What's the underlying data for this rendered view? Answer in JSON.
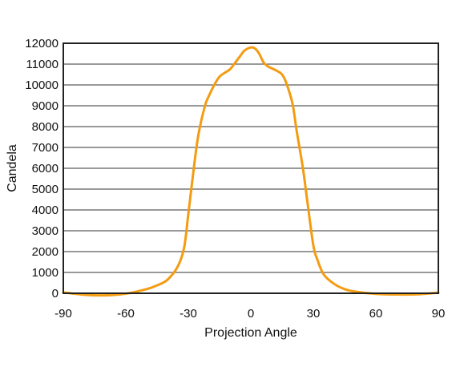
{
  "chart_data": {
    "type": "line",
    "xlabel": "Projection Angle",
    "ylabel": "Candela",
    "xlim": [
      -90,
      90
    ],
    "ylim": [
      0,
      12000
    ],
    "x_ticks": [
      -90,
      -60,
      -30,
      0,
      30,
      60,
      90
    ],
    "y_ticks": [
      0,
      1000,
      2000,
      3000,
      4000,
      5000,
      6000,
      7000,
      8000,
      9000,
      10000,
      11000,
      12000
    ],
    "grid": "horizontal",
    "colors": {
      "line": "#f39c12",
      "grid": "#333333",
      "frame": "#222222"
    },
    "series": [
      {
        "x": [
          -90,
          -80,
          -70,
          -60,
          -50,
          -45,
          -40,
          -35,
          -32,
          -30,
          -27,
          -25,
          -22,
          -20,
          -17,
          -15,
          -13,
          -10,
          -8,
          -5,
          -3,
          0,
          2,
          4,
          6,
          8,
          10,
          13,
          15,
          17,
          20,
          22,
          25,
          27,
          30,
          32,
          35,
          40,
          45,
          50,
          60,
          70,
          80,
          90
        ],
        "y": [
          40,
          -70,
          -100,
          -20,
          200,
          380,
          650,
          1300,
          2200,
          3800,
          6300,
          7700,
          9000,
          9500,
          10100,
          10400,
          10550,
          10750,
          11000,
          11400,
          11650,
          11800,
          11750,
          11500,
          11100,
          10900,
          10800,
          10650,
          10500,
          10100,
          9100,
          7800,
          6000,
          4500,
          2300,
          1600,
          900,
          450,
          200,
          80,
          -30,
          -60,
          -50,
          30
        ]
      }
    ]
  }
}
